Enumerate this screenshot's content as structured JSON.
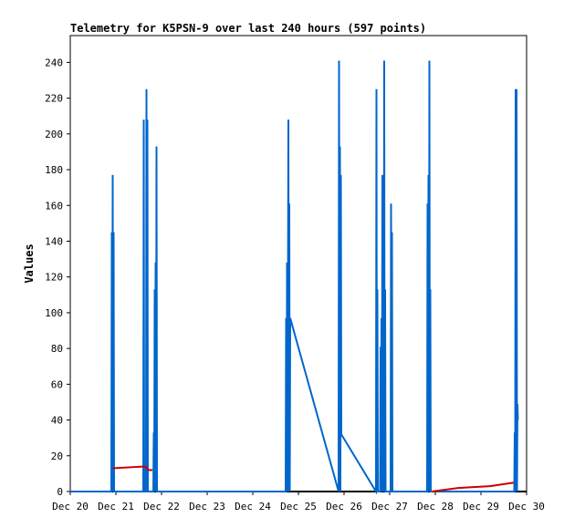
{
  "chart_data": {
    "type": "line",
    "title": "Telemetry for K5PSN-9 over last 240 hours (597 points)",
    "xlabel": "",
    "ylabel": "Values",
    "x_unit": "day",
    "x_tick_labels": [
      "Dec 20",
      "Dec 21",
      "Dec 22",
      "Dec 23",
      "Dec 24",
      "Dec 25",
      "Dec 26",
      "Dec 27",
      "Dec 28",
      "Dec 29",
      "Dec 30"
    ],
    "xlim": [
      0,
      10
    ],
    "ylim": [
      0,
      255
    ],
    "y_ticks": [
      0,
      20,
      40,
      60,
      80,
      100,
      120,
      140,
      160,
      180,
      200,
      220,
      240
    ],
    "grid": false,
    "legend": "none",
    "series": [
      {
        "color": "#0066cc",
        "points": [
          [
            0.0,
            0
          ],
          [
            0.9,
            0
          ],
          [
            0.91,
            145
          ],
          [
            0.92,
            0
          ],
          [
            0.93,
            177
          ],
          [
            0.94,
            0
          ],
          [
            0.95,
            145
          ],
          [
            0.96,
            0
          ],
          [
            1.6,
            0
          ],
          [
            1.61,
            208
          ],
          [
            1.62,
            0
          ],
          [
            1.66,
            0
          ],
          [
            1.67,
            225
          ],
          [
            1.68,
            0
          ],
          [
            1.69,
            208
          ],
          [
            1.7,
            0
          ],
          [
            1.82,
            0
          ],
          [
            1.83,
            33
          ],
          [
            1.84,
            0
          ],
          [
            1.85,
            113
          ],
          [
            1.86,
            0
          ],
          [
            1.87,
            128
          ],
          [
            1.88,
            0
          ],
          [
            1.89,
            193
          ],
          [
            1.9,
            0
          ],
          [
            1.91,
            0
          ],
          [
            4.72,
            0
          ],
          [
            4.73,
            97
          ],
          [
            4.74,
            0
          ],
          [
            4.75,
            128
          ],
          [
            4.76,
            0
          ],
          [
            4.78,
            208
          ],
          [
            4.79,
            0
          ],
          [
            4.8,
            161
          ],
          [
            4.81,
            0
          ],
          [
            4.82,
            97
          ],
          [
            5.88,
            0
          ],
          [
            5.89,
            241
          ],
          [
            5.9,
            0
          ],
          [
            5.91,
            193
          ],
          [
            5.92,
            0
          ],
          [
            5.93,
            177
          ],
          [
            5.94,
            32
          ],
          [
            6.7,
            0
          ],
          [
            6.71,
            225
          ],
          [
            6.72,
            0
          ],
          [
            6.73,
            113
          ],
          [
            6.74,
            0
          ],
          [
            6.79,
            0
          ],
          [
            6.8,
            81
          ],
          [
            6.81,
            0
          ],
          [
            6.82,
            97
          ],
          [
            6.83,
            0
          ],
          [
            6.84,
            177
          ],
          [
            6.85,
            0
          ],
          [
            6.86,
            177
          ],
          [
            6.87,
            0
          ],
          [
            6.88,
            241
          ],
          [
            6.89,
            0
          ],
          [
            6.9,
            113
          ],
          [
            6.91,
            0
          ],
          [
            7.02,
            0
          ],
          [
            7.03,
            161
          ],
          [
            7.04,
            0
          ],
          [
            7.05,
            145
          ],
          [
            7.06,
            0
          ],
          [
            7.82,
            0
          ],
          [
            7.83,
            161
          ],
          [
            7.84,
            0
          ],
          [
            7.85,
            177
          ],
          [
            7.86,
            0
          ],
          [
            7.87,
            241
          ],
          [
            7.88,
            0
          ],
          [
            7.89,
            113
          ],
          [
            7.9,
            0
          ],
          [
            9.73,
            0
          ],
          [
            9.74,
            33
          ],
          [
            9.75,
            0
          ],
          [
            9.76,
            225
          ],
          [
            9.77,
            0
          ],
          [
            9.78,
            225
          ],
          [
            9.79,
            0
          ],
          [
            9.8,
            49
          ],
          [
            9.81,
            40
          ]
        ]
      },
      {
        "color": "#cc0000",
        "points": [
          [
            0.93,
            13
          ],
          [
            1.64,
            14
          ],
          [
            1.72,
            12
          ],
          [
            1.8,
            12
          ]
        ]
      },
      {
        "color": "#cc0000",
        "points": [
          [
            7.92,
            0
          ],
          [
            8.5,
            2
          ],
          [
            9.2,
            3
          ],
          [
            9.72,
            5
          ]
        ]
      }
    ]
  }
}
